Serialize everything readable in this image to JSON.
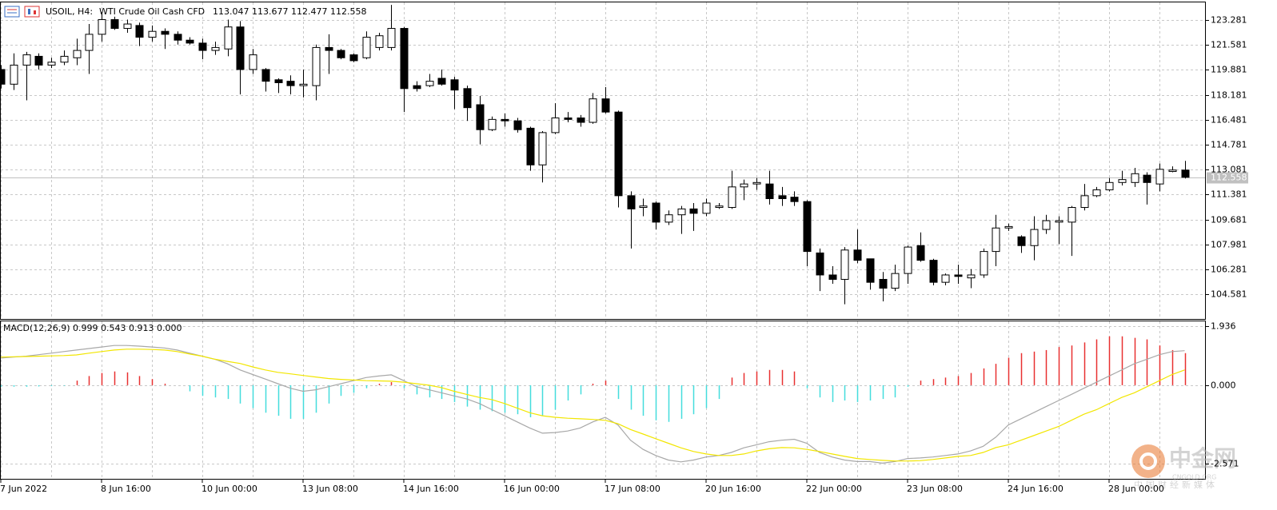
{
  "header": {
    "symbol": "USOIL, H4:",
    "description": "WTI Crude Oil Cash CFD",
    "ohlc": "113.047 113.677 112.477 112.558"
  },
  "chart_data": [
    {
      "type": "candlestick",
      "categories": [
        "7 Jun 2022",
        null,
        null,
        null,
        null,
        null,
        null,
        null,
        "8 Jun 16:00",
        null,
        null,
        null,
        null,
        null,
        null,
        null,
        "10 Jun 00:00",
        null,
        null,
        null,
        null,
        null,
        null,
        null,
        "13 Jun 08:00",
        null,
        null,
        null,
        null,
        null,
        null,
        null,
        "14 Jun 16:00",
        null,
        null,
        null,
        null,
        null,
        null,
        null,
        "16 Jun 00:00",
        null,
        null,
        null,
        null,
        null,
        null,
        null,
        "17 Jun 08:00",
        null,
        null,
        null,
        null,
        null,
        null,
        null,
        "20 Jun 16:00",
        null,
        null,
        null,
        null,
        null,
        null,
        null,
        "22 Jun 00:00",
        null,
        null,
        null,
        null,
        null,
        null,
        null,
        "23 Jun 08:00",
        null,
        null,
        null,
        null,
        null,
        null,
        null,
        "24 Jun 16:00",
        null,
        null,
        null,
        null,
        null,
        null,
        null,
        "28 Jun 00:00",
        null,
        null,
        null,
        null,
        null,
        null
      ],
      "open": [
        119.9,
        118.9,
        120.2,
        120.8,
        120.2,
        120.4,
        120.7,
        121.2,
        122.3,
        123.3,
        122.7,
        122.9,
        122.1,
        122.5,
        122.3,
        121.9,
        121.7,
        121.2,
        121.3,
        122.8,
        119.9,
        119.9,
        119.2,
        119.1,
        118.8,
        118.8,
        121.4,
        121.2,
        120.9,
        120.7,
        121.4,
        121.4,
        122.7,
        118.8,
        118.8,
        119.3,
        119.2,
        118.6,
        117.5,
        115.8,
        116.5,
        116.4,
        115.9,
        113.4,
        115.6,
        116.6,
        116.6,
        116.3,
        117.9,
        117.0,
        111.3,
        110.5,
        110.8,
        109.5,
        110.0,
        110.4,
        110.1,
        110.5,
        110.5,
        111.9,
        112.1,
        112.1,
        111.3,
        111.2,
        110.9,
        107.4,
        105.9,
        105.6,
        107.6,
        107.0,
        105.6,
        105.0,
        106.0,
        107.9,
        106.9,
        105.4,
        105.9,
        105.7,
        105.9,
        107.5,
        109.1,
        108.5,
        107.9,
        109.0,
        109.5,
        109.5,
        110.5,
        111.3,
        111.7,
        112.2,
        112.2,
        112.7,
        112.1,
        112.95,
        113.047
      ],
      "high": [
        120.2,
        121.0,
        121.1,
        121.0,
        120.7,
        121.2,
        122.0,
        123.0,
        123.8,
        123.5,
        123.3,
        123.1,
        122.9,
        122.7,
        122.5,
        122.1,
        122.0,
        121.8,
        123.3,
        123.2,
        121.3,
        120.0,
        119.3,
        119.5,
        119.9,
        121.6,
        122.3,
        121.3,
        121.0,
        122.5,
        122.4,
        124.3,
        122.8,
        119.1,
        119.6,
        119.9,
        119.4,
        118.8,
        118.1,
        116.7,
        116.9,
        116.6,
        116.0,
        115.7,
        117.6,
        117.0,
        116.8,
        118.3,
        118.7,
        117.1,
        111.6,
        111.1,
        110.9,
        110.3,
        110.6,
        110.8,
        111.1,
        110.8,
        113.0,
        112.4,
        112.5,
        113.0,
        111.9,
        111.6,
        111.0,
        107.7,
        106.5,
        107.8,
        109.0,
        107.0,
        106.1,
        106.6,
        107.9,
        108.8,
        107.0,
        106.0,
        106.6,
        106.3,
        107.7,
        110.0,
        109.4,
        108.6,
        109.9,
        110.0,
        109.9,
        110.6,
        112.1,
        111.9,
        112.5,
        113.0,
        113.2,
        112.9,
        113.5,
        113.3,
        113.677
      ],
      "low": [
        118.6,
        118.5,
        117.8,
        119.9,
        120.0,
        120.2,
        120.2,
        119.6,
        121.8,
        122.6,
        122.4,
        121.5,
        121.8,
        121.3,
        121.6,
        121.6,
        120.6,
        120.9,
        120.8,
        118.2,
        119.6,
        118.4,
        118.3,
        118.2,
        118.0,
        117.8,
        119.6,
        120.6,
        120.4,
        120.6,
        121.2,
        121.2,
        117.0,
        118.4,
        118.7,
        118.8,
        117.2,
        116.4,
        114.8,
        115.7,
        116.0,
        115.6,
        113.0,
        112.2,
        115.5,
        116.3,
        116.0,
        116.2,
        116.9,
        110.5,
        107.7,
        109.9,
        109.0,
        109.3,
        108.7,
        108.9,
        109.9,
        110.4,
        110.4,
        111.0,
        111.7,
        110.7,
        110.6,
        110.6,
        106.5,
        104.8,
        105.3,
        103.9,
        106.7,
        104.9,
        104.1,
        104.8,
        105.3,
        106.8,
        105.2,
        105.2,
        105.3,
        105.0,
        105.7,
        106.5,
        108.9,
        107.4,
        106.9,
        108.7,
        108.0,
        107.2,
        110.3,
        111.2,
        111.6,
        112.0,
        111.9,
        110.7,
        111.6,
        112.9,
        112.477
      ],
      "close": [
        118.9,
        120.2,
        120.9,
        120.2,
        120.4,
        120.8,
        121.2,
        122.3,
        123.3,
        122.7,
        123.0,
        122.1,
        122.5,
        122.3,
        121.9,
        121.7,
        121.2,
        121.4,
        122.8,
        119.9,
        120.9,
        119.1,
        119.0,
        118.8,
        118.9,
        121.4,
        121.2,
        120.7,
        120.5,
        122.1,
        122.2,
        122.7,
        118.6,
        118.6,
        119.1,
        118.9,
        118.5,
        117.3,
        115.8,
        116.5,
        116.4,
        115.8,
        113.4,
        115.6,
        116.6,
        116.5,
        116.3,
        117.9,
        117.0,
        111.3,
        110.4,
        110.6,
        109.5,
        110.0,
        110.4,
        110.1,
        110.8,
        110.6,
        111.9,
        112.1,
        112.2,
        111.1,
        111.1,
        110.9,
        107.5,
        105.9,
        105.6,
        107.6,
        106.9,
        105.4,
        105.0,
        106.0,
        107.8,
        106.9,
        105.4,
        105.9,
        105.8,
        105.9,
        107.5,
        109.1,
        109.2,
        107.9,
        109.0,
        109.6,
        109.6,
        110.5,
        111.3,
        111.7,
        112.2,
        112.4,
        112.8,
        112.2,
        113.1,
        113.05,
        112.558
      ],
      "ylim": [
        102.848,
        124.527
      ],
      "yticks": [
        123.281,
        121.581,
        119.881,
        118.181,
        116.481,
        114.781,
        113.081,
        111.381,
        109.681,
        107.981,
        106.281,
        104.581
      ],
      "last_price": 112.558,
      "grid": true,
      "up_color": "#ffffff",
      "down_color": "#000000",
      "last_price_color": "#c0c0c0"
    },
    {
      "type": "macd",
      "title": "MACD(12,26,9) 0.999 0.543 0.913 0.000",
      "histogram": [
        -0.05,
        -0.05,
        -0.05,
        -0.04,
        -0.03,
        -0.02,
        0.15,
        0.3,
        0.4,
        0.45,
        0.42,
        0.3,
        0.2,
        0.05,
        0.0,
        -0.2,
        -0.35,
        -0.4,
        -0.45,
        -0.6,
        -0.75,
        -0.9,
        -1.0,
        -1.1,
        -1.1,
        -0.9,
        -0.6,
        -0.35,
        -0.25,
        -0.1,
        0.05,
        0.1,
        -0.1,
        -0.3,
        -0.4,
        -0.45,
        -0.55,
        -0.7,
        -0.8,
        -0.85,
        -0.9,
        -0.95,
        -1.05,
        -1.0,
        -0.8,
        -0.5,
        -0.3,
        0.05,
        0.15,
        -0.45,
        -0.8,
        -1.0,
        -1.15,
        -1.2,
        -1.1,
        -0.95,
        -0.75,
        -0.45,
        0.25,
        0.4,
        0.45,
        0.5,
        0.5,
        0.45,
        -0.1,
        -0.4,
        -0.55,
        -0.5,
        -0.55,
        -0.5,
        -0.45,
        -0.4,
        -0.05,
        0.15,
        0.2,
        0.25,
        0.3,
        0.4,
        0.55,
        0.7,
        0.9,
        1.05,
        1.1,
        1.15,
        1.25,
        1.3,
        1.4,
        1.5,
        1.6,
        1.6,
        1.55,
        1.5,
        1.3,
        1.15,
        1.05
      ],
      "macd": [
        0.89,
        0.92,
        0.95,
        1.0,
        1.05,
        1.1,
        1.15,
        1.2,
        1.25,
        1.3,
        1.3,
        1.28,
        1.25,
        1.22,
        1.15,
        1.05,
        0.95,
        0.85,
        0.7,
        0.5,
        0.35,
        0.2,
        0.05,
        -0.1,
        -0.2,
        -0.15,
        -0.05,
        0.05,
        0.15,
        0.25,
        0.3,
        0.34,
        0.15,
        -0.05,
        -0.15,
        -0.25,
        -0.35,
        -0.45,
        -0.6,
        -0.8,
        -1.0,
        -1.2,
        -1.4,
        -1.57,
        -1.55,
        -1.5,
        -1.4,
        -1.2,
        -1.05,
        -1.3,
        -1.8,
        -2.1,
        -2.3,
        -2.45,
        -2.51,
        -2.45,
        -2.35,
        -2.3,
        -2.2,
        -2.05,
        -1.95,
        -1.85,
        -1.8,
        -1.77,
        -1.9,
        -2.2,
        -2.35,
        -2.45,
        -2.5,
        -2.5,
        -2.55,
        -2.5,
        -2.4,
        -2.38,
        -2.35,
        -2.3,
        -2.25,
        -2.15,
        -2.0,
        -1.7,
        -1.3,
        -1.1,
        -0.9,
        -0.7,
        -0.5,
        -0.3,
        -0.1,
        0.1,
        0.3,
        0.5,
        0.7,
        0.85,
        1.0,
        1.1,
        1.13
      ],
      "signal": [
        0.92,
        0.93,
        0.94,
        0.95,
        0.96,
        0.97,
        0.99,
        1.05,
        1.1,
        1.15,
        1.18,
        1.18,
        1.17,
        1.15,
        1.1,
        1.02,
        0.95,
        0.85,
        0.78,
        0.71,
        0.6,
        0.5,
        0.42,
        0.37,
        0.32,
        0.27,
        0.22,
        0.19,
        0.17,
        0.15,
        0.14,
        0.13,
        0.1,
        0.05,
        0.0,
        -0.08,
        -0.2,
        -0.3,
        -0.4,
        -0.47,
        -0.6,
        -0.75,
        -0.9,
        -1.0,
        -1.05,
        -1.08,
        -1.1,
        -1.12,
        -1.15,
        -1.26,
        -1.45,
        -1.6,
        -1.75,
        -1.9,
        -2.05,
        -2.17,
        -2.25,
        -2.3,
        -2.3,
        -2.25,
        -2.15,
        -2.08,
        -2.04,
        -2.05,
        -2.1,
        -2.17,
        -2.25,
        -2.33,
        -2.4,
        -2.43,
        -2.46,
        -2.48,
        -2.48,
        -2.47,
        -2.43,
        -2.38,
        -2.33,
        -2.3,
        -2.2,
        -2.04,
        -1.95,
        -1.8,
        -1.65,
        -1.5,
        -1.35,
        -1.15,
        -0.95,
        -0.8,
        -0.6,
        -0.4,
        -0.25,
        -0.05,
        0.15,
        0.35,
        0.5
      ],
      "ylim": [
        -3.09,
        2.09
      ],
      "yticks": [
        1.936,
        {
          "value": 0,
          "label": "0.000"
        },
        -2.571
      ],
      "positive_color": "#e83030",
      "negative_color": "#44dddd",
      "macd_color": "#a8a8a8",
      "signal_color": "#f2e600"
    }
  ],
  "watermark": {
    "brand": "中金网",
    "domain": "CNGOLD.ORG",
    "tagline": "中国财经新媒体"
  }
}
